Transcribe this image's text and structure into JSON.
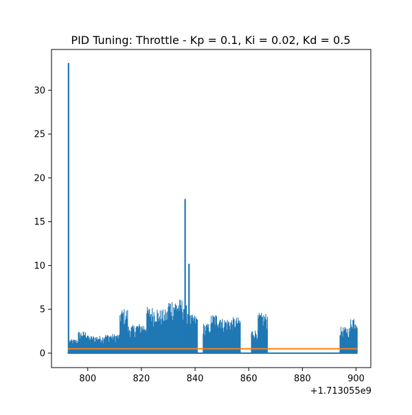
{
  "chart_data": {
    "type": "line",
    "title": "PID Tuning: Throttle - Kp = 0.1, Ki = 0.02, Kd = 0.5",
    "xlabel": "",
    "ylabel": "",
    "x_offset_label": "+1.713055e9",
    "xlim": [
      786.5,
      905.5
    ],
    "ylim": [
      -1.65,
      34.65
    ],
    "x_ticks": [
      800,
      820,
      840,
      860,
      880,
      900
    ],
    "y_ticks": [
      0,
      5,
      10,
      15,
      20,
      25,
      30
    ],
    "grid": false,
    "series": [
      {
        "color": "#1f77b4",
        "segments": [
          {
            "x_start": 792.5,
            "x_end": 793.2,
            "y_min": 0,
            "y_max": 33.1,
            "note": "spike"
          },
          {
            "x_start": 793.2,
            "x_end": 796.5,
            "y_min": 0,
            "y_max": 1.6
          },
          {
            "x_start": 796.5,
            "x_end": 800.0,
            "y_min": 0,
            "y_max": 2.5
          },
          {
            "x_start": 800.0,
            "x_end": 806.0,
            "y_min": 0,
            "y_max": 2.0
          },
          {
            "x_start": 806.0,
            "x_end": 812.0,
            "y_min": 0,
            "y_max": 2.2
          },
          {
            "x_start": 812.0,
            "x_end": 815.0,
            "y_min": 0,
            "y_max": 5.1
          },
          {
            "x_start": 815.0,
            "x_end": 818.0,
            "y_min": 0,
            "y_max": 3.2
          },
          {
            "x_start": 818.0,
            "x_end": 822.0,
            "y_min": 0,
            "y_max": 3.4
          },
          {
            "x_start": 822.0,
            "x_end": 826.0,
            "y_min": 0,
            "y_max": 5.3
          },
          {
            "x_start": 826.0,
            "x_end": 830.0,
            "y_min": 0,
            "y_max": 5.0
          },
          {
            "x_start": 830.0,
            "x_end": 836.0,
            "y_min": 0,
            "y_max": 6.2
          },
          {
            "x_start": 836.0,
            "x_end": 836.6,
            "y_min": 0,
            "y_max": 17.6,
            "note": "spike"
          },
          {
            "x_start": 836.6,
            "x_end": 837.5,
            "y_min": 0,
            "y_max": 5.5
          },
          {
            "x_start": 837.5,
            "x_end": 838.0,
            "y_min": 0,
            "y_max": 10.2,
            "note": "spike"
          },
          {
            "x_start": 838.0,
            "x_end": 841.0,
            "y_min": 0,
            "y_max": 4.4
          },
          {
            "x_start": 843.0,
            "x_end": 846.0,
            "y_min": 0,
            "y_max": 3.4
          },
          {
            "x_start": 846.0,
            "x_end": 850.0,
            "y_min": 0,
            "y_max": 4.5
          },
          {
            "x_start": 850.0,
            "x_end": 854.0,
            "y_min": 0,
            "y_max": 4.0
          },
          {
            "x_start": 854.0,
            "x_end": 857.0,
            "y_min": 0,
            "y_max": 4.1
          },
          {
            "x_start": 861.0,
            "x_end": 863.5,
            "y_min": 0,
            "y_max": 2.7
          },
          {
            "x_start": 863.5,
            "x_end": 867.0,
            "y_min": 0,
            "y_max": 4.6
          },
          {
            "x_start": 894.0,
            "x_end": 898.0,
            "y_min": 0,
            "y_max": 3.0
          },
          {
            "x_start": 898.0,
            "x_end": 900.5,
            "y_min": 0,
            "y_max": 4.3
          }
        ]
      },
      {
        "color": "#ff7f0e",
        "x": [
          792.5,
          900.5
        ],
        "y": [
          0.5,
          0.5
        ]
      }
    ]
  }
}
